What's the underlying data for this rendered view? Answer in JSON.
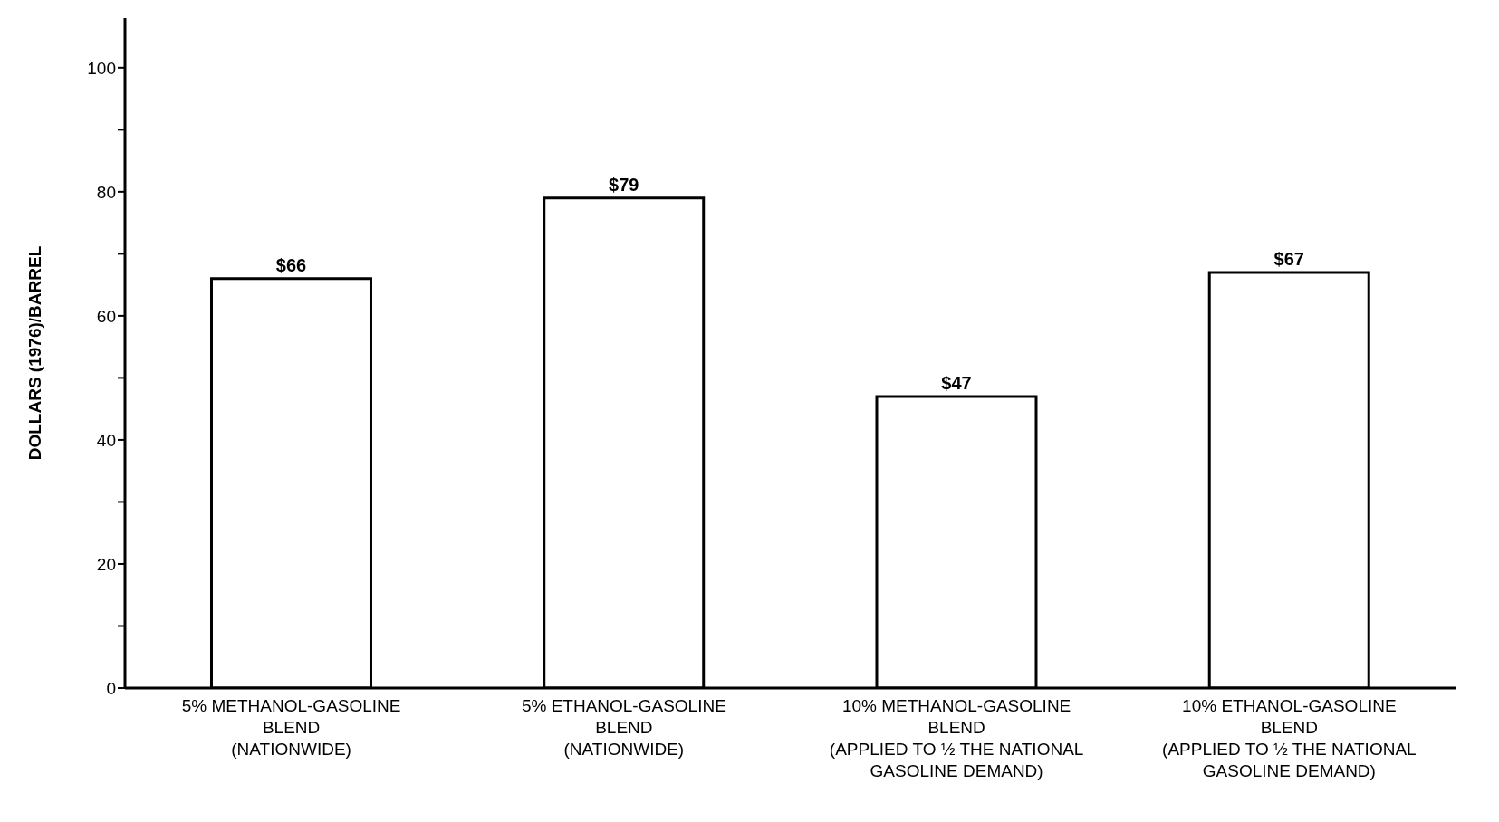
{
  "chart_data": {
    "type": "bar",
    "ylabel": "DOLLARS (1976)/BARREL",
    "categories": [
      "5% METHANOL-GASOLINE\nBLEND\n(NATIONWIDE)",
      "5% ETHANOL-GASOLINE\nBLEND\n(NATIONWIDE)",
      "10% METHANOL-GASOLINE\nBLEND\n(APPLIED TO ½ THE NATIONAL\nGASOLINE DEMAND)",
      "10% ETHANOL-GASOLINE\nBLEND\n(APPLIED TO ½ THE NATIONAL\nGASOLINE DEMAND)"
    ],
    "values": [
      66,
      79,
      47,
      67
    ],
    "value_labels": [
      "$66",
      "$79",
      "$47",
      "$67"
    ],
    "color": "#ffffff",
    "ylim": [
      0,
      108
    ],
    "yticks": [
      0,
      {
        "value": 10,
        "label": null
      },
      20,
      {
        "value": 30,
        "label": null
      },
      40,
      {
        "value": 50,
        "label": null
      },
      60,
      {
        "value": 70,
        "label": null
      },
      80,
      {
        "value": 90,
        "label": null
      },
      100
    ],
    "grid": false
  }
}
